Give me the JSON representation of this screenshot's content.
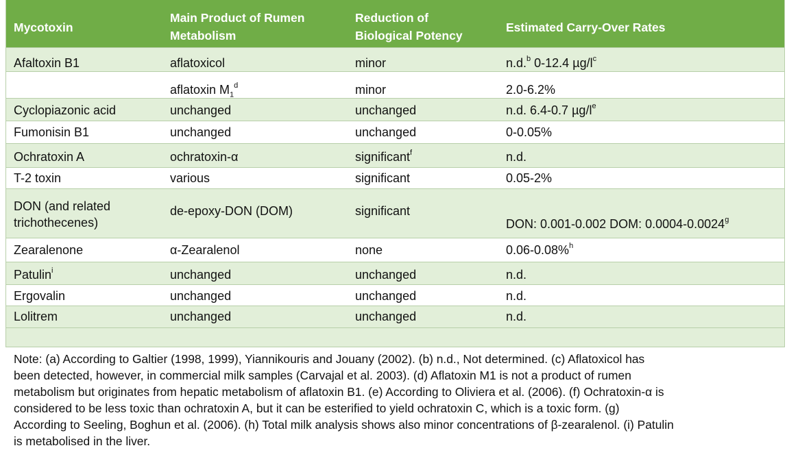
{
  "headers": {
    "col1": "Mycotoxin",
    "col2_line1": "Main Product of Rumen",
    "col2_line2": "Metabolism",
    "col3_line1": "Reduction of",
    "col3_line2": "Biological Potency",
    "col4": "Estimated Carry-Over Rates"
  },
  "rows": [
    {
      "mycotoxin": "Afaltoxin B1",
      "product": "aflatoxicol",
      "reduction": "minor",
      "rate_a": "n.d.",
      "rate_a_sup": "b",
      "rate_b": " 0-12.4 µg/l",
      "rate_b_sup": "c"
    },
    {
      "mycotoxin": "",
      "product": "aflatoxin M",
      "product_sub": "1",
      "product_sup": "d",
      "reduction": "minor",
      "rate": "2.0-6.2%"
    },
    {
      "mycotoxin": "Cyclopiazonic acid",
      "product": "unchanged",
      "reduction": "unchanged",
      "rate": "n.d. 6.4-0.7 µg/l",
      "rate_sup": "e"
    },
    {
      "mycotoxin": "Fumonisin B1",
      "product": "unchanged",
      "reduction": "unchanged",
      "rate": "0-0.05%"
    },
    {
      "mycotoxin": "Ochratoxin A",
      "product": "ochratoxin-α",
      "reduction": "significant",
      "reduction_sup": "f",
      "rate": "n.d."
    },
    {
      "mycotoxin": "T-2 toxin",
      "product": "various",
      "reduction": "significant",
      "rate": "0.05-2%"
    },
    {
      "mycotoxin_line1": "DON (and related",
      "mycotoxin_line2": "trichothecenes)",
      "product": "de-epoxy-DON (DOM)",
      "reduction": "significant",
      "rate": "DON: 0.001-0.002 DOM: 0.0004-0.0024",
      "rate_sup": "g"
    },
    {
      "mycotoxin": "Zearalenone",
      "product": "α-Zearalenol",
      "reduction": "none",
      "rate": "0.06-0.08%",
      "rate_sup": "h"
    },
    {
      "mycotoxin": "Patulin",
      "mycotoxin_sup": "i",
      "product": "unchanged",
      "reduction": "unchanged",
      "rate": "n.d."
    },
    {
      "mycotoxin": "Ergovalin",
      "product": "unchanged",
      "reduction": "unchanged",
      "rate": "n.d."
    },
    {
      "mycotoxin": "Lolitrem",
      "product": "unchanged",
      "reduction": "unchanged",
      "rate": "n.d."
    }
  ],
  "note": {
    "line1": "Note: (a) According to Galtier (1998, 1999), Yiannikouris and Jouany (2002). (b) n.d., Not determined. (c) Aflatoxicol has",
    "line2": "been detected, however, in commercial milk samples (Carvajal et al. 2003). (d) Aflatoxin M1 is not a product of rumen",
    "line3": "metabolism but originates from hepatic metabolism of aflatoxin B1. (e) According to Oliviera et al. (2006). (f) Ochratoxin-α is",
    "line4": "considered to be less toxic than ochratoxin A, but it can be esterified to yield ochratoxin C, which is a toxic form. (g)",
    "line5": "According to Seeling, Boghun et al. (2006). (h) Total milk analysis shows also minor concentrations of β-zearalenol. (i) Patulin",
    "line6": "is metabolised in the liver."
  },
  "colors": {
    "header_bg": "#70ad47",
    "row_shade": "#e2efd9",
    "border": "#b7cfa9"
  }
}
